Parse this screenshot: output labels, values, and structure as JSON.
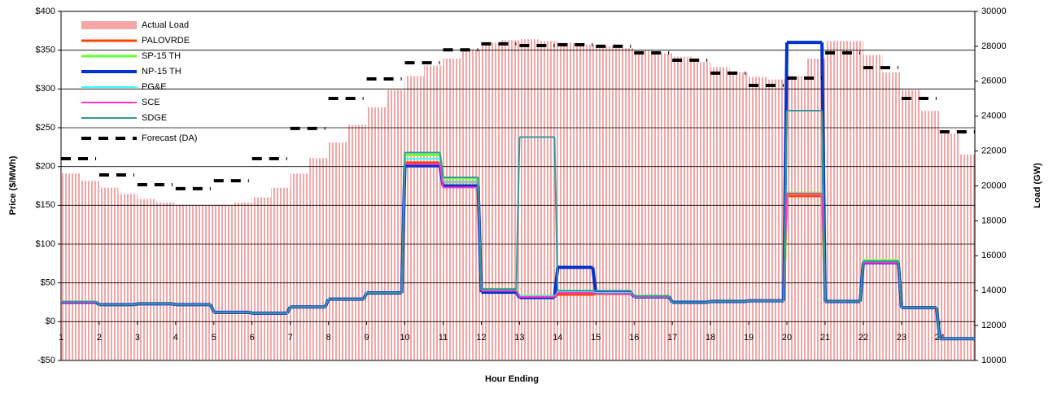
{
  "chart_data": {
    "type": "combo",
    "xlabel": "Hour Ending",
    "ylabel": "Price ($/MWh)",
    "y2label": "Load (GW)",
    "xlim": [
      1,
      24.92
    ],
    "xticks": [
      1,
      2,
      3,
      4,
      5,
      6,
      7,
      8,
      9,
      10,
      11,
      12,
      13,
      14,
      15,
      16,
      17,
      18,
      19,
      20,
      21,
      22,
      23,
      24
    ],
    "ylim": [
      -50,
      400
    ],
    "yticks": [
      {
        "value": -50,
        "label": "-$50"
      },
      {
        "value": 0,
        "label": "$0"
      },
      {
        "value": 50,
        "label": "$50"
      },
      {
        "value": 100,
        "label": "$100"
      },
      {
        "value": 150,
        "label": "$150"
      },
      {
        "value": 200,
        "label": "$200"
      },
      {
        "value": 250,
        "label": "$250"
      },
      {
        "value": 300,
        "label": "$300"
      },
      {
        "value": 350,
        "label": "$350"
      },
      {
        "value": 400,
        "label": "$400"
      }
    ],
    "y2lim": [
      10000,
      30000
    ],
    "y2ticks": [
      10000,
      12000,
      14000,
      16000,
      18000,
      20000,
      22000,
      24000,
      26000,
      28000,
      30000
    ],
    "grid": true,
    "legend": "upper left",
    "x": [
      1,
      2,
      3,
      4,
      5,
      6,
      7,
      8,
      9,
      10,
      11,
      12,
      13,
      14,
      15,
      16,
      17,
      18,
      19,
      20,
      21,
      22,
      23,
      24
    ],
    "series": [
      {
        "name": "Actual Load",
        "type": "bar",
        "axis": "y2",
        "color": "#f4a6a6",
        "x": [
          1,
          1.5,
          2,
          2.5,
          3,
          3.5,
          4,
          4.5,
          5,
          5.5,
          6,
          6.5,
          7,
          7.5,
          8,
          8.5,
          9,
          9.5,
          10,
          10.5,
          11,
          11.5,
          12,
          12.5,
          13,
          13.5,
          14,
          14.5,
          15,
          15.5,
          16,
          16.5,
          17,
          17.5,
          18,
          18.5,
          19,
          19.5,
          20,
          20.5,
          21,
          21.5,
          22,
          22.5,
          23,
          23.5,
          24,
          24.5
        ],
        "values": [
          20720,
          20300,
          19900,
          19550,
          19250,
          19050,
          18920,
          18900,
          18920,
          19050,
          19350,
          19900,
          20700,
          21600,
          22500,
          23500,
          24500,
          25500,
          26300,
          26900,
          27300,
          27800,
          28200,
          28350,
          28400,
          28300,
          28200,
          28100,
          28000,
          27900,
          27750,
          27600,
          27400,
          27100,
          26800,
          26500,
          26250,
          26100,
          26300,
          27300,
          28300,
          28300,
          27500,
          26500,
          25500,
          24300,
          23000,
          21800
        ]
      },
      {
        "name": "PALOVRDE",
        "type": "step",
        "color": "#ff4400",
        "width": 3,
        "values": [
          25,
          22,
          23,
          22,
          12,
          11,
          19,
          29,
          37,
          205,
          180,
          40,
          33,
          35,
          36,
          32,
          25,
          26,
          27,
          162,
          26,
          76,
          18,
          -22
        ]
      },
      {
        "name": "SP-15 TH",
        "type": "step",
        "color": "#66ff33",
        "width": 3,
        "values": [
          25,
          22,
          23,
          22,
          12,
          11,
          19,
          29,
          37,
          215,
          185,
          42,
          33,
          38,
          37,
          33,
          25,
          26,
          27,
          166,
          26,
          79,
          18,
          -22
        ]
      },
      {
        "name": "NP-15 TH",
        "type": "step",
        "color": "#0033cc",
        "width": 4,
        "values": [
          25,
          22,
          23,
          22,
          12,
          11,
          19,
          29,
          37,
          201,
          175,
          38,
          31,
          70,
          37,
          32,
          25,
          26,
          27,
          360,
          26,
          76,
          18,
          -22
        ]
      },
      {
        "name": "PG&E",
        "type": "step",
        "color": "#33ffff",
        "width": 2,
        "values": [
          26,
          22,
          23,
          22,
          12,
          11,
          19,
          29,
          37,
          210,
          180,
          40,
          33,
          38,
          37,
          32,
          25,
          26,
          27,
          272,
          26,
          78,
          18,
          -22
        ]
      },
      {
        "name": "SCE",
        "type": "step",
        "color": "#ff33cc",
        "width": 2,
        "values": [
          25,
          22,
          23,
          22,
          12,
          11,
          19,
          29,
          37,
          203,
          173,
          40,
          32,
          37,
          36,
          32,
          25,
          26,
          27,
          165,
          26,
          76,
          18,
          -22
        ]
      },
      {
        "name": "SDGE",
        "type": "step",
        "color": "#339999",
        "width": 2,
        "values": [
          26,
          22,
          23,
          22,
          12,
          11,
          19,
          29,
          37,
          218,
          186,
          42,
          238,
          40,
          40,
          33,
          25,
          26,
          27,
          272,
          26,
          78,
          18,
          -22
        ]
      },
      {
        "name": "Forecast (DA)",
        "type": "step",
        "axis": "y2",
        "color": "#000000",
        "width": 4,
        "dash": true,
        "values": [
          21560,
          20630,
          20070,
          19840,
          20300,
          21560,
          23290,
          25010,
          26130,
          27060,
          27800,
          28140,
          28040,
          28090,
          28000,
          27620,
          27200,
          26460,
          25760,
          26180,
          27620,
          26780,
          25010,
          23100
        ]
      }
    ]
  }
}
